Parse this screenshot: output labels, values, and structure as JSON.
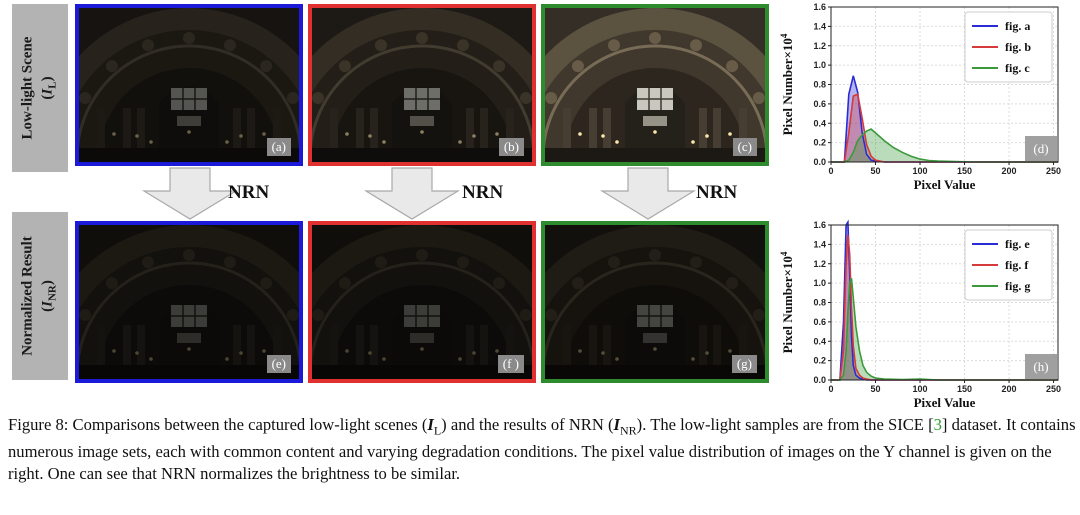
{
  "row_labels": {
    "top": {
      "line1": "Low-light Scene",
      "line2_var": "I",
      "line2_sub": "L"
    },
    "bottom": {
      "line1": "Normalized Result",
      "line2_var": "I",
      "line2_sub": "NR"
    }
  },
  "panels": [
    {
      "tag": "(a)",
      "border": "#1a1ad8",
      "brightness": 0.42
    },
    {
      "tag": "(b)",
      "border": "#e03030",
      "brightness": 0.55
    },
    {
      "tag": "(c)",
      "border": "#2e8b2e",
      "brightness": 1.0
    },
    {
      "tag": "(e)",
      "border": "#1a1ad8",
      "brightness": 0.3
    },
    {
      "tag": "(f )",
      "border": "#e03030",
      "brightness": 0.3
    },
    {
      "tag": "(g)",
      "border": "#2e8b2e",
      "brightness": 0.34
    }
  ],
  "arrow_label": "NRN",
  "colors": {
    "blue": "#2b2bd6",
    "red": "#d63a3a",
    "green": "#3a9a3a"
  },
  "chart_data": [
    {
      "type": "area",
      "panel_tag": "(d)",
      "xlabel": "Pixel Value",
      "ylabel": "Pixel Number×10",
      "ylabel_exp": "4",
      "xlim": [
        0,
        255
      ],
      "ylim": [
        0,
        1.6
      ],
      "xticks": [
        0,
        50,
        100,
        150,
        200,
        250
      ],
      "yticks": [
        0.0,
        0.2,
        0.4,
        0.6,
        0.8,
        1.0,
        1.2,
        1.4,
        1.6
      ],
      "grid": true,
      "legend_position": "top-right",
      "x": [
        0,
        15,
        20,
        25,
        30,
        35,
        40,
        45,
        50,
        60,
        70,
        80,
        90,
        100,
        110,
        120,
        140,
        160,
        200,
        255
      ],
      "series": [
        {
          "name": "fig. a",
          "color": "#2b2bd6",
          "values": [
            0,
            0,
            0.7,
            0.89,
            0.72,
            0.3,
            0.08,
            0.02,
            0.01,
            0,
            0,
            0,
            0,
            0,
            0,
            0,
            0,
            0,
            0,
            0
          ]
        },
        {
          "name": "fig. b",
          "color": "#d63a3a",
          "values": [
            0,
            0,
            0.3,
            0.68,
            0.7,
            0.45,
            0.18,
            0.06,
            0.02,
            0,
            0,
            0,
            0,
            0,
            0,
            0,
            0,
            0,
            0,
            0
          ]
        },
        {
          "name": "fig. c",
          "color": "#3a9a3a",
          "values": [
            0,
            0,
            0.02,
            0.1,
            0.22,
            0.28,
            0.32,
            0.34,
            0.3,
            0.22,
            0.15,
            0.1,
            0.06,
            0.03,
            0.015,
            0.01,
            0.005,
            0,
            0,
            0
          ]
        }
      ]
    },
    {
      "type": "area",
      "panel_tag": "(h)",
      "xlabel": "Pixel Value",
      "ylabel": "Pixel Number×10",
      "ylabel_exp": "4",
      "xlim": [
        0,
        255
      ],
      "ylim": [
        0,
        1.6
      ],
      "xticks": [
        0,
        50,
        100,
        150,
        200,
        250
      ],
      "yticks": [
        0.0,
        0.2,
        0.4,
        0.6,
        0.8,
        1.0,
        1.2,
        1.4,
        1.6
      ],
      "grid": true,
      "legend_position": "top-right",
      "x": [
        0,
        10,
        14,
        17,
        19,
        21,
        23,
        25,
        28,
        32,
        36,
        40,
        45,
        50,
        60,
        80,
        100,
        120,
        255
      ],
      "series": [
        {
          "name": "fig. e",
          "color": "#2b2bd6",
          "values": [
            0,
            0,
            0.6,
            1.6,
            1.63,
            1.1,
            0.45,
            0.15,
            0.05,
            0.02,
            0.01,
            0,
            0,
            0,
            0,
            0,
            0,
            0,
            0
          ]
        },
        {
          "name": "fig. f",
          "color": "#d63a3a",
          "values": [
            0,
            0,
            0.3,
            1.2,
            1.5,
            1.3,
            0.75,
            0.35,
            0.12,
            0.05,
            0.02,
            0.01,
            0,
            0,
            0,
            0,
            0,
            0,
            0
          ]
        },
        {
          "name": "fig. g",
          "color": "#3a9a3a",
          "values": [
            0,
            0,
            0.05,
            0.3,
            0.7,
            1.0,
            1.05,
            0.85,
            0.55,
            0.3,
            0.15,
            0.08,
            0.04,
            0.02,
            0.01,
            0.005,
            0.01,
            0,
            0
          ]
        }
      ]
    }
  ],
  "caption": {
    "prefix": "Figure 8: Comparisons between the captured low-light scenes (",
    "var1": "I",
    "sub1": "L",
    "mid1": ") and the results of NRN (",
    "var2": "I",
    "sub2": "NR",
    "mid2": "). The low-light samples are from the SICE [",
    "ref": "3",
    "rest": "] dataset. It contains numerous image sets, each with common content and varying degradation conditions. The pixel value distribution of images on the Y channel is given on the right. One can see that NRN normalizes the brightness to be similar."
  }
}
